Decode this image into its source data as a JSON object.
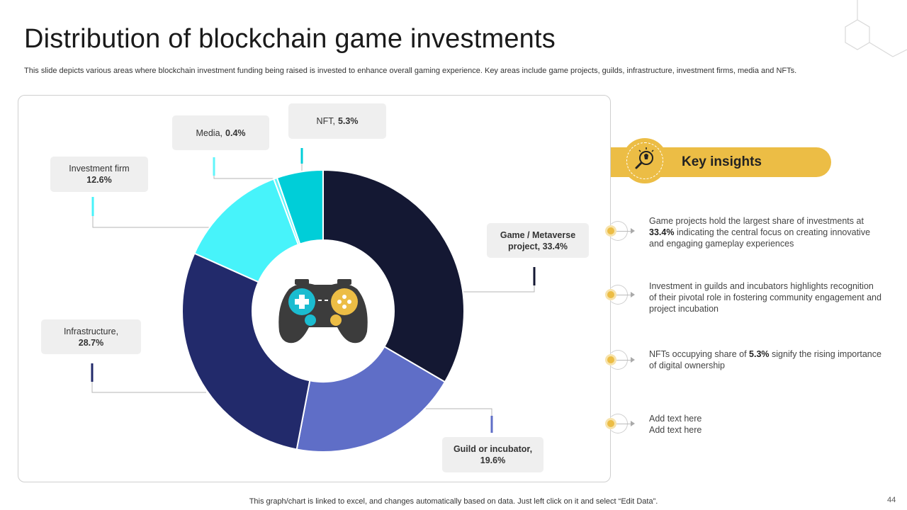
{
  "slide": {
    "title": "Distribution of blockchain game investments",
    "subtitle": "This slide depicts various areas where blockchain investment funding being raised is invested to enhance overall gaming experience. Key areas include game projects, guilds, infrastructure, investment firms, media and NFTs.",
    "footer": "This graph/chart is linked to excel,  and changes automatically based on data. Just left click on it and select “Edit Data”.",
    "page_number": "44"
  },
  "chart_data": {
    "type": "pie",
    "variant": "donut",
    "title": "Distribution of blockchain game investments",
    "categories": [
      "Game / Metaverse project",
      "Guild or incubator",
      "Infrastructure",
      "Investment firm",
      "Media",
      "NFT"
    ],
    "values": [
      33.4,
      19.6,
      28.7,
      12.6,
      0.4,
      5.3
    ],
    "unit": "%",
    "colors": [
      "#141833",
      "#5f6ec7",
      "#222a6b",
      "#47f3fa",
      "#61f5fb",
      "#00ced8"
    ],
    "center_icon": "gamepad-icon"
  },
  "callouts": [
    {
      "label": "Game / Metaverse",
      "label2": "project, 33.4%",
      "bold_all": true
    },
    {
      "label": "Guild or incubator,",
      "label2": "19.6%",
      "bold_all": true
    },
    {
      "label": "Infrastructure,",
      "value": "28.7%"
    },
    {
      "label": "Investment  firm",
      "value": "12.6%"
    },
    {
      "label": "Media,",
      "value": "0.4%"
    },
    {
      "label": "NFT,",
      "value": "5.3%"
    }
  ],
  "insights_header": {
    "label": "Key insights",
    "icon": "lightbulb-magnifier-icon",
    "accent": "#ecbd45"
  },
  "insights": [
    {
      "pre": "Game projects hold the largest share of investments at",
      "bold": "33.4%",
      "post": "indicating the central focus on creating innovative  and engaging gameplay experiences"
    },
    {
      "pre": "Investment  in guilds and incubators highlights recognition of their pivotal role in fostering community engagement  and project incubation",
      "bold": "",
      "post": ""
    },
    {
      "pre": "NFTs occupying share of",
      "bold": "5.3%",
      "post": "signify the rising importance  of digital ownership"
    },
    {
      "pre": "Add text here",
      "bold": "",
      "post": "Add text here"
    }
  ]
}
